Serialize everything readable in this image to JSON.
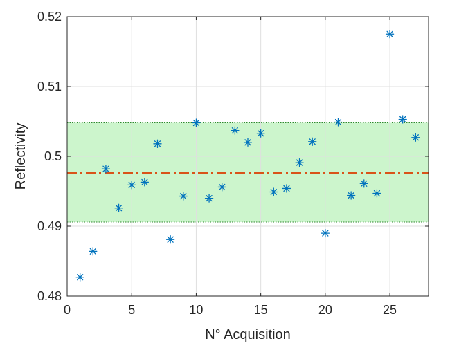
{
  "chart_data": {
    "type": "scatter",
    "title": "",
    "xlabel": "N° Acquisition",
    "ylabel": "Reflectivity",
    "xlim": [
      0,
      28
    ],
    "ylim": [
      0.48,
      0.52
    ],
    "xticks": [
      0,
      5,
      10,
      15,
      20,
      25
    ],
    "yticks": [
      0.48,
      0.49,
      0.5,
      0.51,
      0.52
    ],
    "xtick_labels": [
      "0",
      "5",
      "10",
      "15",
      "20",
      "25"
    ],
    "ytick_labels": [
      "0.48",
      "0.49",
      "0.5",
      "0.51",
      "0.52"
    ],
    "grid": true,
    "series": [
      {
        "marker": "asterisk",
        "color": "#0072BD",
        "x": [
          1,
          2,
          3,
          4,
          5,
          6,
          7,
          8,
          9,
          10,
          11,
          12,
          13,
          14,
          15,
          16,
          17,
          18,
          19,
          20,
          21,
          22,
          23,
          24,
          25,
          26,
          27
        ],
        "y": [
          0.4827,
          0.4864,
          0.4982,
          0.4926,
          0.4959,
          0.4963,
          0.5018,
          0.4881,
          0.4943,
          0.5048,
          0.494,
          0.4956,
          0.5037,
          0.502,
          0.5033,
          0.4949,
          0.4954,
          0.4991,
          0.5021,
          0.489,
          0.5049,
          0.4944,
          0.4961,
          0.4947,
          0.5175,
          0.5053,
          0.5027
        ]
      }
    ],
    "mean_line": {
      "value": 0.4976,
      "color": "#D95319",
      "style": "dash-dot"
    },
    "band": {
      "lower": 0.4906,
      "upper": 0.5048,
      "fill": "#ccf5cc",
      "edge": "#2e8b2e"
    },
    "box_color": "#262626",
    "grid_color": "#dfdfdf"
  }
}
